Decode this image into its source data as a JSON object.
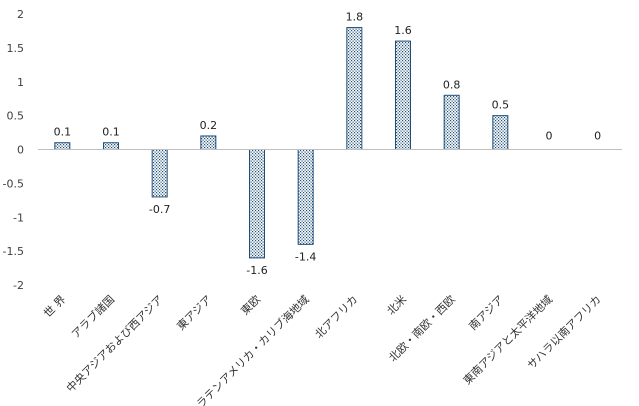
{
  "chart_data": {
    "type": "bar",
    "categories": [
      "世 界",
      "アラブ諸国",
      "中央アジアおよび西アジア",
      "東アジア",
      "東欧",
      "ラテンアメリカ・カリブ海地域",
      "北アフリカ",
      "北米",
      "北欧・南欧・西欧",
      "南アジア",
      "東南アジアと太平洋地域",
      "サハラ以南アフリカ"
    ],
    "values": [
      0.1,
      0.1,
      -0.7,
      0.2,
      -1.6,
      -1.4,
      1.8,
      1.6,
      0.8,
      0.5,
      0,
      0
    ],
    "data_labels": [
      "0.1",
      "0.1",
      "-0.7",
      "0.2",
      "-1.6",
      "-1.4",
      "1.8",
      "1.6",
      "0.8",
      "0.5",
      "0",
      "0"
    ],
    "yticks": [
      "2",
      "1.5",
      "1",
      "0.5",
      "0",
      "-0.5",
      "-1",
      "-1.5",
      "-2"
    ],
    "ylim": [
      -2,
      2
    ],
    "title": "",
    "xlabel": "",
    "ylabel": "",
    "grid": false,
    "legend": "none",
    "colors": {
      "bar_outline": "#1f4e79",
      "bar_pattern": "#1f4e79",
      "axis": "#bfbfbf"
    }
  }
}
